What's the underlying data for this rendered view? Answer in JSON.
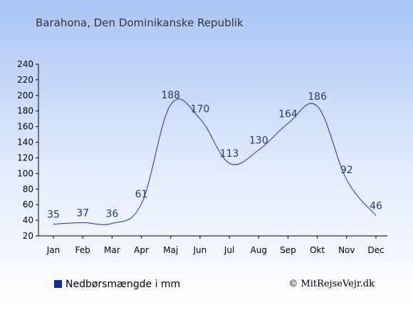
{
  "colors": {
    "background_top": "#a9c5f5",
    "background_bottom": "#ffffff",
    "line": "#1f2fb0",
    "label": "#1f3a6e",
    "legend_swatch": "#0d27a8"
  },
  "chart_data": {
    "type": "line",
    "title": "Barahona, Den Dominikanske Republik",
    "categories": [
      "Jan",
      "Feb",
      "Mar",
      "Apr",
      "Maj",
      "Jun",
      "Jul",
      "Aug",
      "Sep",
      "Okt",
      "Nov",
      "Dec"
    ],
    "series": [
      {
        "name": "Nedbørsmængde i mm",
        "values": [
          35,
          37,
          36,
          61,
          188,
          170,
          113,
          130,
          164,
          186,
          92,
          46
        ]
      }
    ],
    "ylim": [
      20,
      240
    ],
    "yticks": [
      20,
      40,
      60,
      80,
      100,
      120,
      140,
      160,
      180,
      200,
      220,
      240
    ],
    "grid": false,
    "legend_position": "bottom-left",
    "data_labels": true
  },
  "credit": "© MitRejseVejr.dk"
}
